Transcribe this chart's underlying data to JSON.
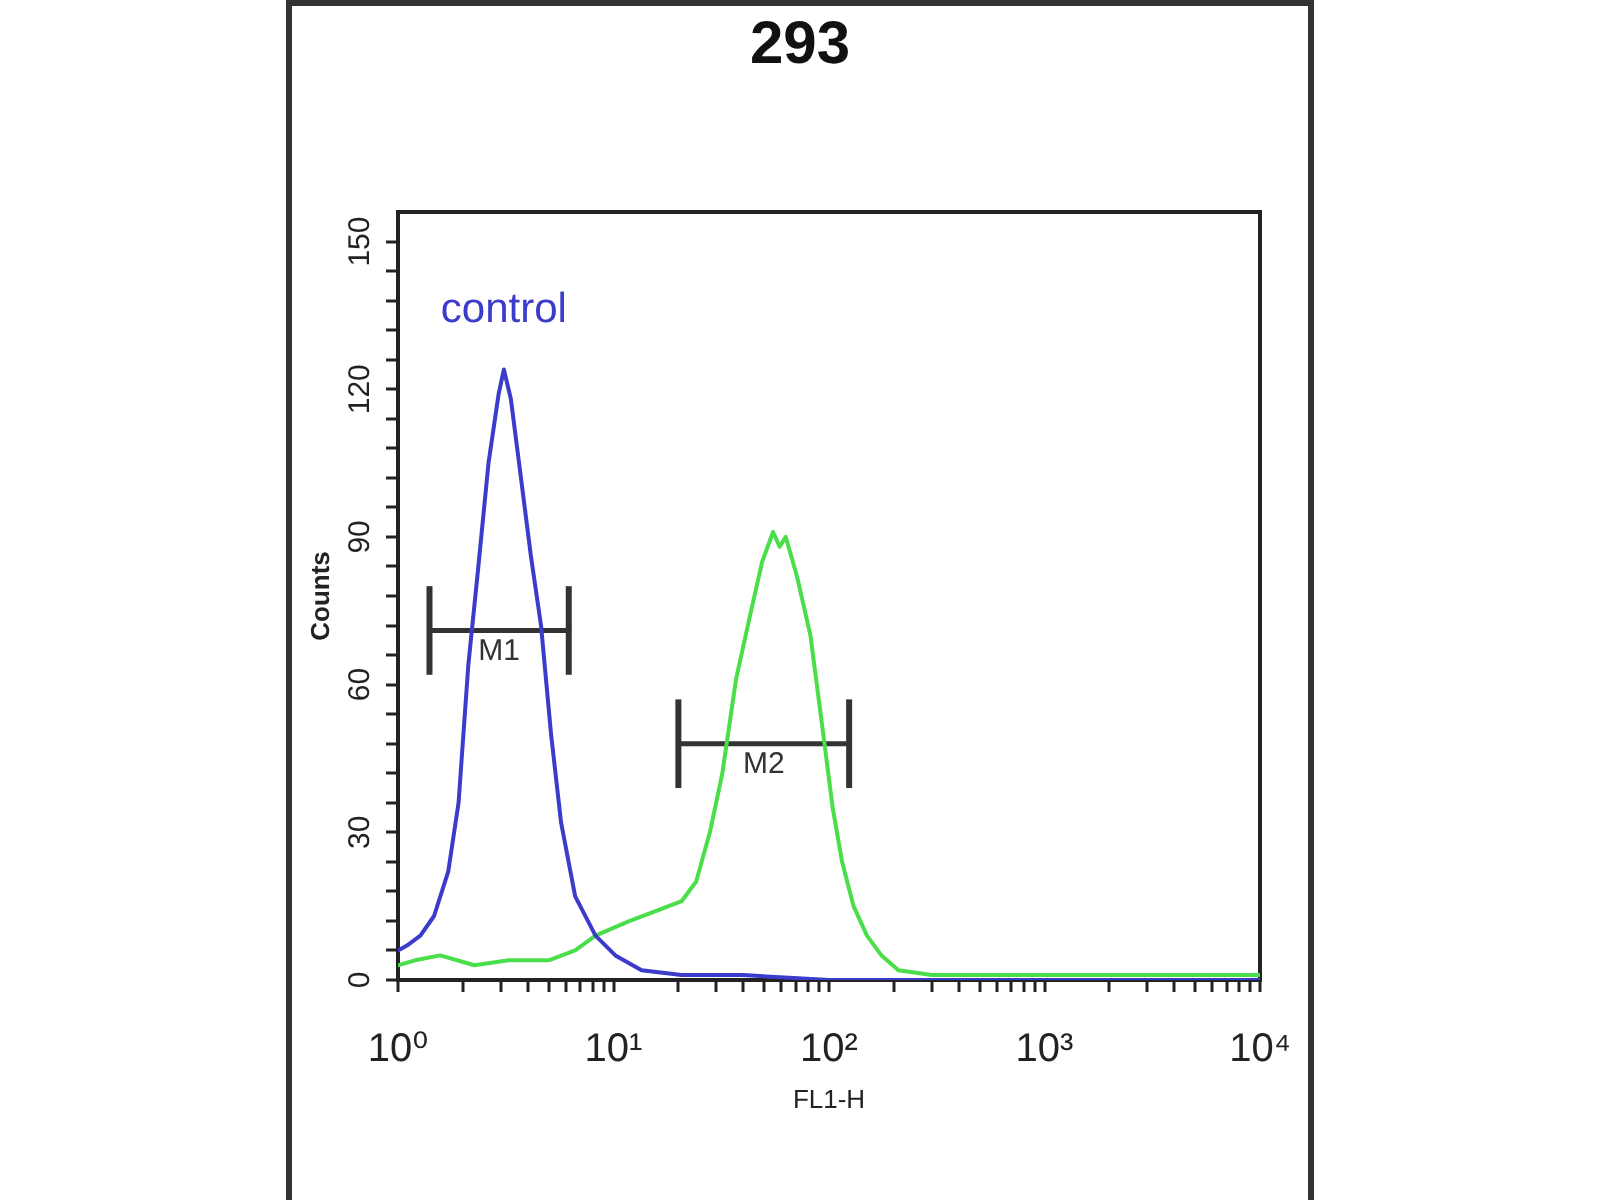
{
  "chart_data": {
    "type": "line",
    "title": "293",
    "xlabel": "FL1-H",
    "ylabel": "Counts",
    "log": "x",
    "xlim": [
      1,
      10000
    ],
    "xticks": [
      {
        "value": 1,
        "label": "10⁰"
      },
      {
        "value": 2,
        "label": null
      },
      {
        "value": 3,
        "label": null
      },
      {
        "value": 4,
        "label": null
      },
      {
        "value": 5,
        "label": null
      },
      {
        "value": 6,
        "label": null
      },
      {
        "value": 7,
        "label": null
      },
      {
        "value": 8,
        "label": null
      },
      {
        "value": 9,
        "label": null
      },
      {
        "value": 10,
        "label": "10¹"
      },
      {
        "value": 20,
        "label": null
      },
      {
        "value": 30,
        "label": null
      },
      {
        "value": 40,
        "label": null
      },
      {
        "value": 50,
        "label": null
      },
      {
        "value": 60,
        "label": null
      },
      {
        "value": 70,
        "label": null
      },
      {
        "value": 80,
        "label": null
      },
      {
        "value": 90,
        "label": null
      },
      {
        "value": 100,
        "label": "10²"
      },
      {
        "value": 200,
        "label": null
      },
      {
        "value": 300,
        "label": null
      },
      {
        "value": 400,
        "label": null
      },
      {
        "value": 500,
        "label": null
      },
      {
        "value": 600,
        "label": null
      },
      {
        "value": 700,
        "label": null
      },
      {
        "value": 800,
        "label": null
      },
      {
        "value": 900,
        "label": null
      },
      {
        "value": 1000,
        "label": "10³"
      },
      {
        "value": 2000,
        "label": null
      },
      {
        "value": 3000,
        "label": null
      },
      {
        "value": 4000,
        "label": null
      },
      {
        "value": 5000,
        "label": null
      },
      {
        "value": 6000,
        "label": null
      },
      {
        "value": 7000,
        "label": null
      },
      {
        "value": 8000,
        "label": null
      },
      {
        "value": 9000,
        "label": null
      },
      {
        "value": 10000,
        "label": "10⁴"
      }
    ],
    "ylim": [
      0,
      156
    ],
    "yticks": [
      0,
      {
        "value": 6,
        "label": null
      },
      {
        "value": 12,
        "label": null
      },
      {
        "value": 18,
        "label": null
      },
      {
        "value": 24,
        "label": null
      },
      30,
      {
        "value": 36,
        "label": null
      },
      {
        "value": 42,
        "label": null
      },
      {
        "value": 48,
        "label": null
      },
      {
        "value": 54,
        "label": null
      },
      60,
      {
        "value": 66,
        "label": null
      },
      {
        "value": 72,
        "label": null
      },
      {
        "value": 78,
        "label": null
      },
      {
        "value": 84,
        "label": null
      },
      90,
      {
        "value": 96,
        "label": null
      },
      {
        "value": 102,
        "label": null
      },
      {
        "value": 108,
        "label": null
      },
      {
        "value": 114,
        "label": null
      },
      120,
      {
        "value": 126,
        "label": null
      },
      {
        "value": 132,
        "label": null
      },
      {
        "value": 138,
        "label": null
      },
      {
        "value": 144,
        "label": null
      },
      150
    ],
    "series": [
      {
        "name": "control",
        "color": "#3b3bcc",
        "x": [
          1,
          1.1,
          1.27,
          1.47,
          1.71,
          1.91,
          2.12,
          2.36,
          2.63,
          2.93,
          3.1,
          3.34,
          3.72,
          4.14,
          4.61,
          5.13,
          5.71,
          6.64,
          8.25,
          10.2,
          13.5,
          20.7,
          40,
          100,
          300,
          1000,
          3000,
          10000
        ],
        "values": [
          6,
          7,
          9,
          13,
          22,
          36,
          64,
          84,
          105,
          119,
          124,
          118,
          102,
          86,
          72,
          50,
          32,
          17,
          9,
          5,
          2,
          1,
          1,
          0,
          0,
          0,
          0,
          0
        ]
      },
      {
        "color": "#4ade4a",
        "x": [
          1,
          1.2,
          1.57,
          2.26,
          3.26,
          5,
          6.64,
          8.25,
          11.9,
          15.7,
          20.7,
          24.2,
          28,
          32,
          37,
          43,
          49,
          55,
          59,
          63,
          71,
          82,
          94,
          104,
          115,
          130,
          150,
          175,
          210,
          300,
          1000,
          3000,
          10000
        ],
        "values": [
          3,
          4,
          5,
          3,
          4,
          4,
          6,
          9,
          12,
          14,
          16,
          20,
          30,
          42,
          61,
          74,
          85,
          91,
          88,
          90,
          82,
          70,
          50,
          35,
          24,
          15,
          9,
          5,
          2,
          1,
          1,
          1,
          1
        ]
      },
      {
        "name": "M1",
        "color": "#333333",
        "x": [
          1.4,
          6.2
        ],
        "values": [
          71,
          71
        ],
        "errors": [
          9,
          9
        ]
      },
      {
        "name": "M2",
        "color": "#333333",
        "x": [
          20,
          124
        ],
        "values": [
          48,
          48
        ],
        "errors": [
          9,
          9
        ]
      }
    ],
    "grid": false,
    "legend": false,
    "marker": "none",
    "line_style": "solid"
  }
}
